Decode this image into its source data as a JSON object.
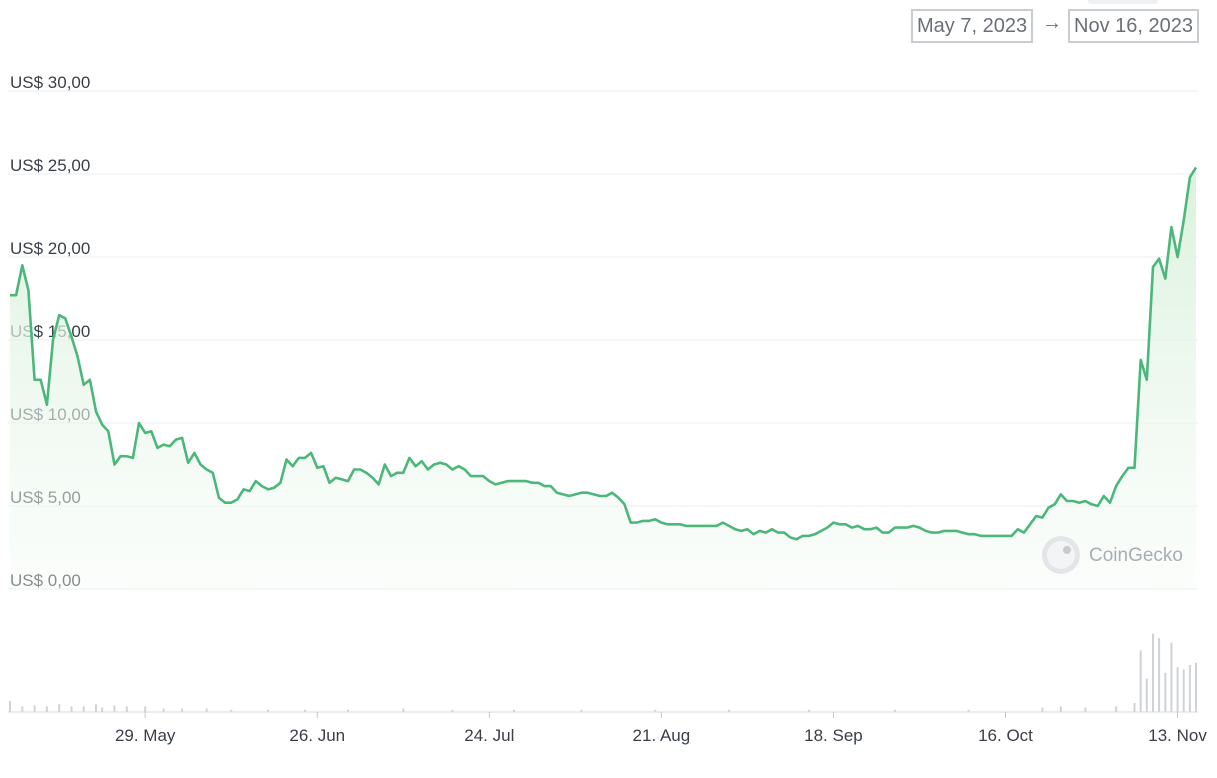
{
  "range": {
    "from": "May 7, 2023",
    "to": "Nov 16, 2023",
    "arrow": "→"
  },
  "watermark": "CoinGecko",
  "colors": {
    "line": "#4cb77a",
    "fill_top": "#d7efd9",
    "grid": "#eceef1",
    "volume": "#cfd3d8"
  },
  "chart_data": {
    "type": "area",
    "ylim": [
      0,
      30
    ],
    "yticks": [
      {
        "value": 0,
        "label": "US$ 0,00"
      },
      {
        "value": 5,
        "label": "US$ 5,00"
      },
      {
        "value": 10,
        "label": "US$ 10,00"
      },
      {
        "value": 15,
        "label": "US$ 15,00"
      },
      {
        "value": 20,
        "label": "US$ 20,00"
      },
      {
        "value": 25,
        "label": "US$ 25,00"
      },
      {
        "value": 30,
        "label": "US$ 30,00"
      }
    ],
    "xlim": [
      "2023-05-07",
      "2023-11-16"
    ],
    "xticks": [
      {
        "date": "2023-05-29",
        "label": "29. May"
      },
      {
        "date": "2023-06-26",
        "label": "26. Jun"
      },
      {
        "date": "2023-07-24",
        "label": "24. Jul"
      },
      {
        "date": "2023-08-21",
        "label": "21. Aug"
      },
      {
        "date": "2023-09-18",
        "label": "18. Sep"
      },
      {
        "date": "2023-10-16",
        "label": "16. Oct"
      },
      {
        "date": "2023-11-13",
        "label": "13. Nov"
      }
    ],
    "grid": true,
    "price": [
      [
        "2023-05-07",
        17.7
      ],
      [
        "2023-05-08",
        17.7
      ],
      [
        "2023-05-09",
        19.5
      ],
      [
        "2023-05-10",
        18.0
      ],
      [
        "2023-05-11",
        12.6
      ],
      [
        "2023-05-12",
        12.6
      ],
      [
        "2023-05-13",
        11.1
      ],
      [
        "2023-05-14",
        15.0
      ],
      [
        "2023-05-15",
        16.5
      ],
      [
        "2023-05-16",
        16.3
      ],
      [
        "2023-05-17",
        15.2
      ],
      [
        "2023-05-18",
        14.0
      ],
      [
        "2023-05-19",
        12.3
      ],
      [
        "2023-05-20",
        12.6
      ],
      [
        "2023-05-21",
        10.7
      ],
      [
        "2023-05-22",
        9.9
      ],
      [
        "2023-05-23",
        9.5
      ],
      [
        "2023-05-24",
        7.5
      ],
      [
        "2023-05-25",
        8.0
      ],
      [
        "2023-05-26",
        8.0
      ],
      [
        "2023-05-27",
        7.9
      ],
      [
        "2023-05-28",
        10.0
      ],
      [
        "2023-05-29",
        9.4
      ],
      [
        "2023-05-30",
        9.5
      ],
      [
        "2023-05-31",
        8.5
      ],
      [
        "2023-06-01",
        8.7
      ],
      [
        "2023-06-02",
        8.6
      ],
      [
        "2023-06-03",
        9.0
      ],
      [
        "2023-06-04",
        9.1
      ],
      [
        "2023-06-05",
        7.6
      ],
      [
        "2023-06-06",
        8.2
      ],
      [
        "2023-06-07",
        7.5
      ],
      [
        "2023-06-08",
        7.2
      ],
      [
        "2023-06-09",
        7.0
      ],
      [
        "2023-06-10",
        5.5
      ],
      [
        "2023-06-11",
        5.2
      ],
      [
        "2023-06-12",
        5.2
      ],
      [
        "2023-06-13",
        5.4
      ],
      [
        "2023-06-14",
        6.0
      ],
      [
        "2023-06-15",
        5.9
      ],
      [
        "2023-06-16",
        6.5
      ],
      [
        "2023-06-17",
        6.2
      ],
      [
        "2023-06-18",
        6.0
      ],
      [
        "2023-06-19",
        6.1
      ],
      [
        "2023-06-20",
        6.4
      ],
      [
        "2023-06-21",
        7.8
      ],
      [
        "2023-06-22",
        7.4
      ],
      [
        "2023-06-23",
        7.9
      ],
      [
        "2023-06-24",
        7.9
      ],
      [
        "2023-06-25",
        8.2
      ],
      [
        "2023-06-26",
        7.3
      ],
      [
        "2023-06-27",
        7.4
      ],
      [
        "2023-06-28",
        6.4
      ],
      [
        "2023-06-29",
        6.7
      ],
      [
        "2023-06-30",
        6.6
      ],
      [
        "2023-07-01",
        6.5
      ],
      [
        "2023-07-02",
        7.2
      ],
      [
        "2023-07-03",
        7.2
      ],
      [
        "2023-07-04",
        7.0
      ],
      [
        "2023-07-05",
        6.7
      ],
      [
        "2023-07-06",
        6.3
      ],
      [
        "2023-07-07",
        7.5
      ],
      [
        "2023-07-08",
        6.8
      ],
      [
        "2023-07-09",
        7.0
      ],
      [
        "2023-07-10",
        7.0
      ],
      [
        "2023-07-11",
        7.9
      ],
      [
        "2023-07-12",
        7.4
      ],
      [
        "2023-07-13",
        7.7
      ],
      [
        "2023-07-14",
        7.2
      ],
      [
        "2023-07-15",
        7.5
      ],
      [
        "2023-07-16",
        7.6
      ],
      [
        "2023-07-17",
        7.5
      ],
      [
        "2023-07-18",
        7.2
      ],
      [
        "2023-07-19",
        7.4
      ],
      [
        "2023-07-20",
        7.2
      ],
      [
        "2023-07-21",
        6.8
      ],
      [
        "2023-07-22",
        6.8
      ],
      [
        "2023-07-23",
        6.8
      ],
      [
        "2023-07-24",
        6.5
      ],
      [
        "2023-07-25",
        6.3
      ],
      [
        "2023-07-26",
        6.4
      ],
      [
        "2023-07-27",
        6.5
      ],
      [
        "2023-07-28",
        6.5
      ],
      [
        "2023-07-29",
        6.5
      ],
      [
        "2023-07-30",
        6.5
      ],
      [
        "2023-07-31",
        6.4
      ],
      [
        "2023-08-01",
        6.4
      ],
      [
        "2023-08-02",
        6.2
      ],
      [
        "2023-08-03",
        6.2
      ],
      [
        "2023-08-04",
        5.8
      ],
      [
        "2023-08-05",
        5.7
      ],
      [
        "2023-08-06",
        5.6
      ],
      [
        "2023-08-07",
        5.7
      ],
      [
        "2023-08-08",
        5.8
      ],
      [
        "2023-08-09",
        5.8
      ],
      [
        "2023-08-10",
        5.7
      ],
      [
        "2023-08-11",
        5.6
      ],
      [
        "2023-08-12",
        5.6
      ],
      [
        "2023-08-13",
        5.8
      ],
      [
        "2023-08-14",
        5.5
      ],
      [
        "2023-08-15",
        5.1
      ],
      [
        "2023-08-16",
        4.0
      ],
      [
        "2023-08-17",
        4.0
      ],
      [
        "2023-08-18",
        4.1
      ],
      [
        "2023-08-19",
        4.1
      ],
      [
        "2023-08-20",
        4.2
      ],
      [
        "2023-08-21",
        4.0
      ],
      [
        "2023-08-22",
        3.9
      ],
      [
        "2023-08-23",
        3.9
      ],
      [
        "2023-08-24",
        3.9
      ],
      [
        "2023-08-25",
        3.8
      ],
      [
        "2023-08-26",
        3.8
      ],
      [
        "2023-08-27",
        3.8
      ],
      [
        "2023-08-28",
        3.8
      ],
      [
        "2023-08-29",
        3.8
      ],
      [
        "2023-08-30",
        3.8
      ],
      [
        "2023-08-31",
        4.0
      ],
      [
        "2023-09-01",
        3.8
      ],
      [
        "2023-09-02",
        3.6
      ],
      [
        "2023-09-03",
        3.5
      ],
      [
        "2023-09-04",
        3.6
      ],
      [
        "2023-09-05",
        3.3
      ],
      [
        "2023-09-06",
        3.5
      ],
      [
        "2023-09-07",
        3.4
      ],
      [
        "2023-09-08",
        3.6
      ],
      [
        "2023-09-09",
        3.4
      ],
      [
        "2023-09-10",
        3.4
      ],
      [
        "2023-09-11",
        3.1
      ],
      [
        "2023-09-12",
        3.0
      ],
      [
        "2023-09-13",
        3.2
      ],
      [
        "2023-09-14",
        3.2
      ],
      [
        "2023-09-15",
        3.3
      ],
      [
        "2023-09-16",
        3.5
      ],
      [
        "2023-09-17",
        3.7
      ],
      [
        "2023-09-18",
        4.0
      ],
      [
        "2023-09-19",
        3.9
      ],
      [
        "2023-09-20",
        3.9
      ],
      [
        "2023-09-21",
        3.7
      ],
      [
        "2023-09-22",
        3.8
      ],
      [
        "2023-09-23",
        3.6
      ],
      [
        "2023-09-24",
        3.6
      ],
      [
        "2023-09-25",
        3.7
      ],
      [
        "2023-09-26",
        3.4
      ],
      [
        "2023-09-27",
        3.4
      ],
      [
        "2023-09-28",
        3.7
      ],
      [
        "2023-09-29",
        3.7
      ],
      [
        "2023-09-30",
        3.7
      ],
      [
        "2023-10-01",
        3.8
      ],
      [
        "2023-10-02",
        3.7
      ],
      [
        "2023-10-03",
        3.5
      ],
      [
        "2023-10-04",
        3.4
      ],
      [
        "2023-10-05",
        3.4
      ],
      [
        "2023-10-06",
        3.5
      ],
      [
        "2023-10-07",
        3.5
      ],
      [
        "2023-10-08",
        3.5
      ],
      [
        "2023-10-09",
        3.4
      ],
      [
        "2023-10-10",
        3.3
      ],
      [
        "2023-10-11",
        3.3
      ],
      [
        "2023-10-12",
        3.2
      ],
      [
        "2023-10-13",
        3.2
      ],
      [
        "2023-10-14",
        3.2
      ],
      [
        "2023-10-15",
        3.2
      ],
      [
        "2023-10-16",
        3.2
      ],
      [
        "2023-10-17",
        3.2
      ],
      [
        "2023-10-18",
        3.6
      ],
      [
        "2023-10-19",
        3.4
      ],
      [
        "2023-10-20",
        3.9
      ],
      [
        "2023-10-21",
        4.4
      ],
      [
        "2023-10-22",
        4.3
      ],
      [
        "2023-10-23",
        4.9
      ],
      [
        "2023-10-24",
        5.1
      ],
      [
        "2023-10-25",
        5.7
      ],
      [
        "2023-10-26",
        5.3
      ],
      [
        "2023-10-27",
        5.3
      ],
      [
        "2023-10-28",
        5.2
      ],
      [
        "2023-10-29",
        5.3
      ],
      [
        "2023-10-30",
        5.1
      ],
      [
        "2023-10-31",
        5.0
      ],
      [
        "2023-11-01",
        5.6
      ],
      [
        "2023-11-02",
        5.2
      ],
      [
        "2023-11-03",
        6.2
      ],
      [
        "2023-11-04",
        6.8
      ],
      [
        "2023-11-05",
        7.3
      ],
      [
        "2023-11-06",
        7.3
      ],
      [
        "2023-11-07",
        13.8
      ],
      [
        "2023-11-08",
        12.6
      ],
      [
        "2023-11-09",
        19.4
      ],
      [
        "2023-11-10",
        19.9
      ],
      [
        "2023-11-11",
        18.7
      ],
      [
        "2023-11-12",
        21.8
      ],
      [
        "2023-11-13",
        20.0
      ],
      [
        "2023-11-14",
        22.2
      ],
      [
        "2023-11-15",
        24.8
      ],
      [
        "2023-11-16",
        25.4
      ]
    ],
    "volume": [
      [
        "2023-05-07",
        0.1
      ],
      [
        "2023-05-09",
        0.05
      ],
      [
        "2023-05-11",
        0.06
      ],
      [
        "2023-05-13",
        0.05
      ],
      [
        "2023-05-15",
        0.07
      ],
      [
        "2023-05-17",
        0.05
      ],
      [
        "2023-05-19",
        0.05
      ],
      [
        "2023-05-21",
        0.07
      ],
      [
        "2023-05-22",
        0.04
      ],
      [
        "2023-05-24",
        0.06
      ],
      [
        "2023-05-26",
        0.05
      ],
      [
        "2023-05-29",
        0.05
      ],
      [
        "2023-06-01",
        0.03
      ],
      [
        "2023-06-04",
        0.03
      ],
      [
        "2023-06-08",
        0.03
      ],
      [
        "2023-06-12",
        0.02
      ],
      [
        "2023-06-18",
        0.02
      ],
      [
        "2023-06-24",
        0.02
      ],
      [
        "2023-07-01",
        0.02
      ],
      [
        "2023-07-10",
        0.03
      ],
      [
        "2023-07-18",
        0.02
      ],
      [
        "2023-07-28",
        0.02
      ],
      [
        "2023-08-08",
        0.02
      ],
      [
        "2023-08-20",
        0.02
      ],
      [
        "2023-09-01",
        0.02
      ],
      [
        "2023-09-14",
        0.02
      ],
      [
        "2023-09-28",
        0.02
      ],
      [
        "2023-10-10",
        0.02
      ],
      [
        "2023-10-22",
        0.04
      ],
      [
        "2023-10-25",
        0.05
      ],
      [
        "2023-10-29",
        0.04
      ],
      [
        "2023-11-03",
        0.05
      ],
      [
        "2023-11-06",
        0.08
      ],
      [
        "2023-11-07",
        0.55
      ],
      [
        "2023-11-08",
        0.3
      ],
      [
        "2023-11-09",
        0.7
      ],
      [
        "2023-11-10",
        0.66
      ],
      [
        "2023-11-11",
        0.35
      ],
      [
        "2023-11-12",
        0.62
      ],
      [
        "2023-11-13",
        0.4
      ],
      [
        "2023-11-14",
        0.38
      ],
      [
        "2023-11-15",
        0.42
      ],
      [
        "2023-11-16",
        0.44
      ]
    ]
  }
}
